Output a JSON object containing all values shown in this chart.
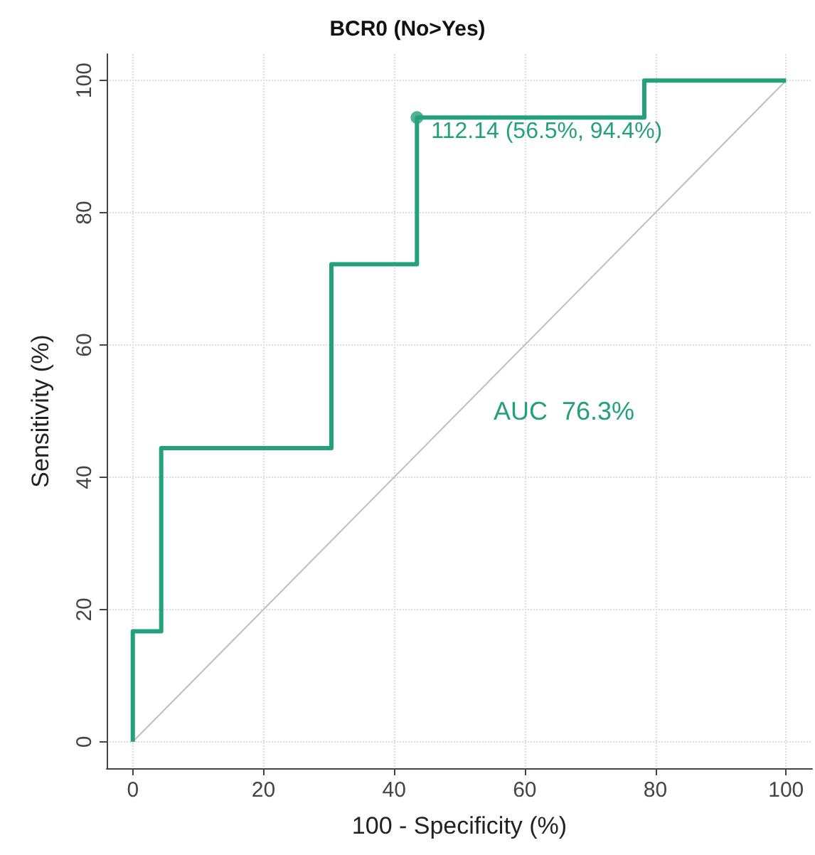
{
  "chart_data": {
    "type": "line",
    "title": "BCR0 (No>Yes)",
    "xlabel": "100 - Specificity (%)",
    "ylabel": "Sensitivity (%)",
    "xlim": [
      -4,
      104
    ],
    "ylim": [
      -4,
      104
    ],
    "xticks": [
      0,
      20,
      40,
      60,
      80,
      100
    ],
    "yticks": [
      0,
      20,
      40,
      60,
      80,
      100
    ],
    "grid": true,
    "marker": "none",
    "line_style": "solid",
    "series": [
      {
        "color": "#bebebe",
        "x": [
          0,
          100
        ],
        "values": [
          0,
          100
        ]
      },
      {
        "color": "#24a07a",
        "x": [
          0,
          0,
          4.35,
          4.35,
          30.4,
          30.4,
          43.5,
          43.5,
          78.3,
          78.3,
          100
        ],
        "values": [
          0,
          16.7,
          16.7,
          44.4,
          44.4,
          72.2,
          72.2,
          94.4,
          94.4,
          100,
          100
        ]
      },
      {
        "type": "scatter",
        "color": "#24a07a",
        "marker": "circle",
        "x": [
          43.5
        ],
        "values": [
          94.4
        ]
      }
    ],
    "annotations": [
      {
        "text": "112.14 (56.5%, 94.4%)",
        "x": 43.5,
        "y": 94.4
      },
      "AUC  76.3%"
    ]
  }
}
